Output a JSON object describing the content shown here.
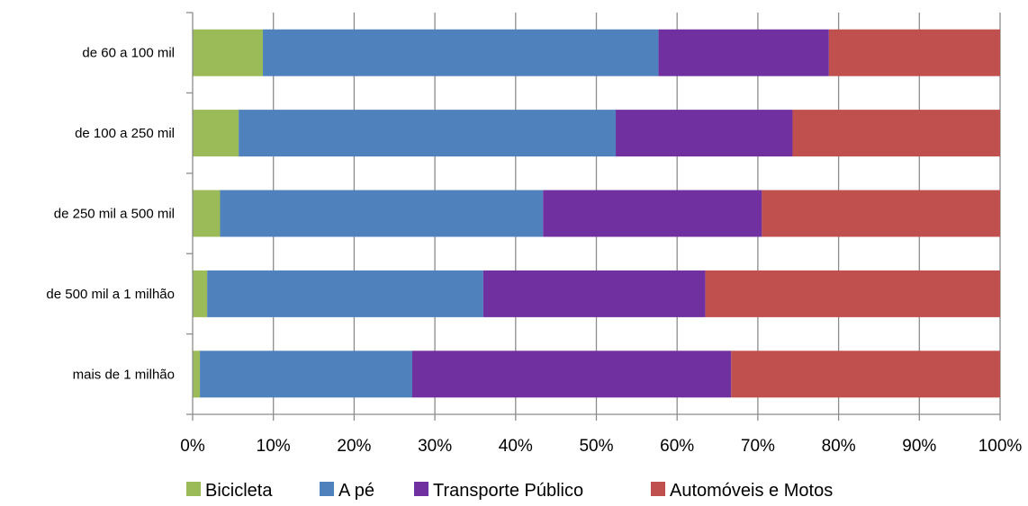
{
  "chart_data": {
    "type": "bar",
    "orientation": "horizontal",
    "stacked": "percent",
    "categories": [
      "de 60 a 100 mil",
      "de 100 a 250 mil",
      "de 250 mil a 500 mil",
      "de 500 mil a 1 milhão",
      "mais de 1 milhão"
    ],
    "series": [
      {
        "name": "Bicicleta",
        "color": "#9BBB59",
        "values": [
          8.7,
          5.7,
          3.4,
          1.8,
          0.9
        ]
      },
      {
        "name": "A pé",
        "color": "#4F81BD",
        "values": [
          49.0,
          46.7,
          40.0,
          34.2,
          26.3
        ]
      },
      {
        "name": "Transporte Público",
        "color": "#7030A0",
        "values": [
          21.1,
          21.9,
          27.1,
          27.5,
          39.5
        ]
      },
      {
        "name": "Automóveis e Motos",
        "color": "#C0504D",
        "values": [
          21.2,
          25.7,
          29.5,
          36.5,
          33.3
        ]
      }
    ],
    "xlim": [
      0,
      100
    ],
    "xticks": [
      "0%",
      "10%",
      "20%",
      "30%",
      "40%",
      "50%",
      "60%",
      "70%",
      "80%",
      "90%",
      "100%"
    ],
    "grid": "vertical",
    "legend_position": "bottom",
    "title": "",
    "xlabel": "",
    "ylabel": ""
  }
}
